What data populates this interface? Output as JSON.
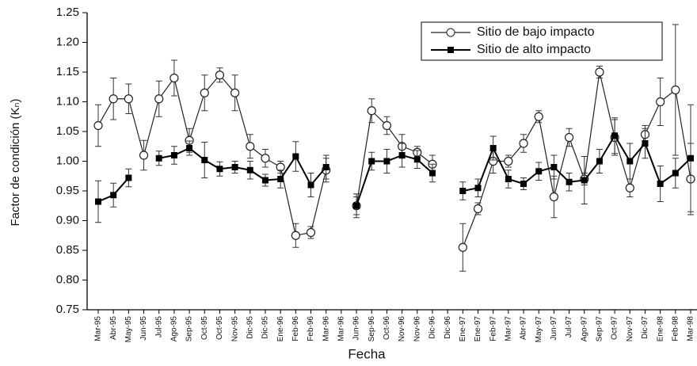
{
  "chart_data": {
    "type": "line",
    "xlabel": "Fecha",
    "ylabel": "Factor de condición (Kₙ)",
    "categories": [
      "Mar-95",
      "Abr-95",
      "May-95",
      "Jun-95",
      "Jul-95",
      "Ago-95",
      "Sep-95",
      "Oct-95",
      "Oct-95",
      "Nov-95",
      "Dic-95",
      "Dic-95",
      "Ene-96",
      "Feb-96",
      "Feb-96",
      "Mar-96",
      "Mar-96",
      "Jun-96",
      "Sep-96",
      "Oct-96",
      "Nov-96",
      "Nov-96",
      "Dic-96",
      "Dic-96",
      "Ene-97",
      "Ene-97",
      "Feb-97",
      "Mar-97",
      "Abr-97",
      "May-97",
      "Jun-97",
      "Jul-97",
      "Ago-97",
      "Sep-97",
      "Oct-97",
      "Nov-97",
      "Dic-97",
      "Ene-98",
      "Feb-98",
      "Mar-98"
    ],
    "series": [
      {
        "name": "Sitio de bajo impacto",
        "color": "#222",
        "marker": "open-circle",
        "values": [
          1.06,
          1.105,
          1.105,
          1.01,
          1.105,
          1.14,
          1.035,
          1.115,
          1.145,
          1.115,
          1.025,
          1.005,
          0.99,
          0.875,
          0.88,
          0.985,
          null,
          0.925,
          1.085,
          1.06,
          1.025,
          1.015,
          0.995,
          null,
          0.855,
          0.92,
          1.0,
          1.0,
          1.03,
          1.075,
          0.94,
          1.04,
          0.97,
          1.15,
          1.04,
          0.955,
          1.045,
          1.1,
          1.12,
          0.97
        ],
        "errors": [
          0.035,
          0.035,
          0.025,
          0.025,
          0.03,
          0.03,
          0.02,
          0.03,
          0.012,
          0.03,
          0.02,
          0.015,
          0.01,
          0.02,
          0.01,
          0.02,
          null,
          0.02,
          0.02,
          0.015,
          0.02,
          0.01,
          0.015,
          null,
          0.04,
          0.01,
          0.02,
          0.01,
          0.015,
          0.01,
          0.035,
          0.015,
          0.01,
          0.01,
          0.03,
          0.015,
          0.015,
          0.04,
          0.11,
          0.06
        ]
      },
      {
        "name": "Sitio de alto impacto",
        "color": "#000",
        "marker": "filled-square",
        "values": [
          0.932,
          0.943,
          0.972,
          null,
          1.005,
          1.01,
          1.022,
          1.002,
          0.987,
          0.99,
          0.985,
          0.968,
          0.97,
          1.008,
          0.96,
          0.99,
          null,
          0.925,
          1.0,
          1.0,
          1.01,
          1.003,
          0.98,
          null,
          0.95,
          0.955,
          1.022,
          0.97,
          0.962,
          0.983,
          0.99,
          0.965,
          0.968,
          1.0,
          1.043,
          1.0,
          1.03,
          0.962,
          0.98,
          1.005
        ],
        "errors": [
          0.035,
          0.02,
          0.015,
          null,
          0.012,
          0.015,
          0.012,
          0.03,
          0.012,
          0.01,
          0.015,
          0.01,
          0.015,
          0.025,
          0.02,
          0.02,
          null,
          0.015,
          0.015,
          0.02,
          0.02,
          0.015,
          0.015,
          null,
          0.015,
          0.015,
          0.02,
          0.015,
          0.01,
          0.015,
          0.02,
          0.015,
          0.04,
          0.02,
          0.03,
          0.03,
          0.025,
          0.03,
          0.025,
          0.09
        ]
      }
    ],
    "ylim": [
      0.75,
      1.25
    ],
    "yticks": [
      0.75,
      {
        "value": 0.8,
        "label": "0.80"
      },
      0.85,
      {
        "value": 0.9,
        "label": "0.90"
      },
      0.95,
      {
        "value": 1.0,
        "label": "1.00"
      },
      1.05,
      {
        "value": 1.1,
        "label": "1.10"
      },
      1.15,
      {
        "value": 1.2,
        "label": "1.20"
      },
      1.25
    ],
    "legend": "upper-right",
    "grid": false
  }
}
